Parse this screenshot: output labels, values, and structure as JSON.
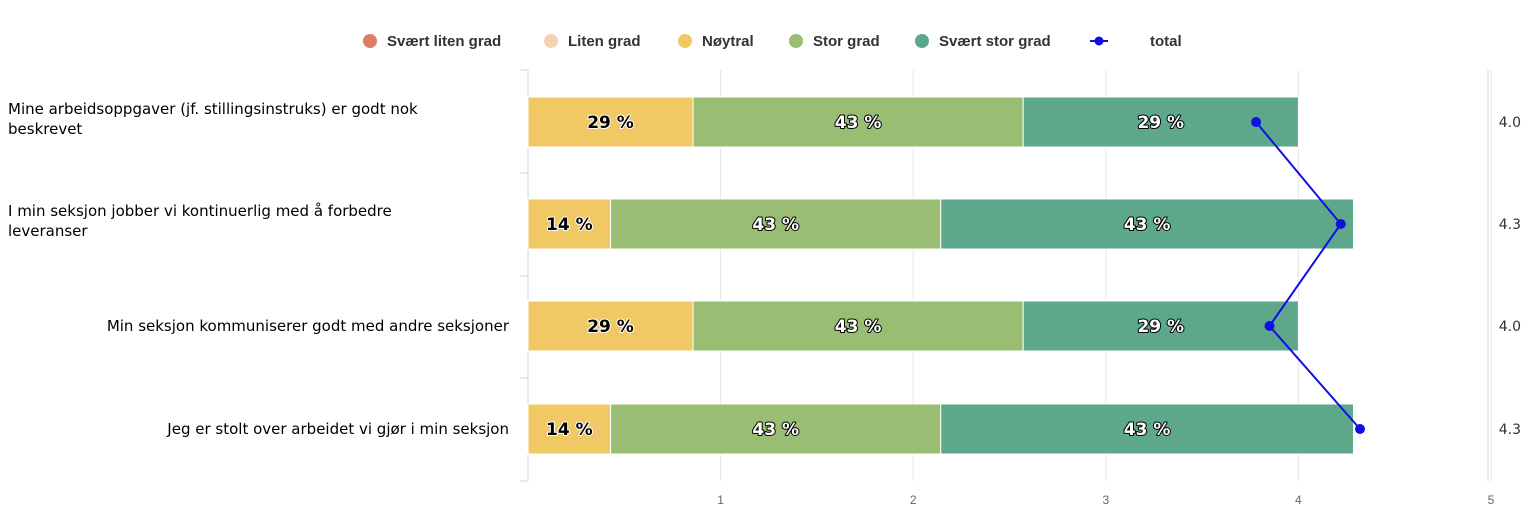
{
  "chart_data": {
    "type": "bar",
    "orientation": "horizontal",
    "stacked": true,
    "categories": [
      "Mine arbeidsoppgaver (jf. stillingsinstruks) er godt nok beskrevet",
      "I min seksjon jobber vi kontinuerlig med å forbedre leveranser",
      "Min seksjon kommuniserer godt med andre seksjoner",
      "Jeg er stolt over arbeidet vi gjør i min seksjon"
    ],
    "series": [
      {
        "name": "Svært liten grad",
        "color": "#e07b6a",
        "values": [
          0,
          0,
          0,
          0
        ],
        "labels": [
          "",
          "",
          "",
          ""
        ]
      },
      {
        "name": "Liten grad",
        "color": "#f6d2b3",
        "values": [
          0,
          0,
          0,
          0
        ],
        "labels": [
          "",
          "",
          "",
          ""
        ]
      },
      {
        "name": "Nøytral",
        "color": "#f0c965",
        "values": [
          0.857,
          0.429,
          0.857,
          0.429
        ],
        "labels": [
          "29 %",
          "14 %",
          "29 %",
          "14 %"
        ]
      },
      {
        "name": "Stor grad",
        "color": "#9abd74",
        "values": [
          1.714,
          1.714,
          1.714,
          1.714
        ],
        "labels": [
          "43 %",
          "43 %",
          "43 %",
          "43 %"
        ]
      },
      {
        "name": "Svært stor grad",
        "color": "#5da78a",
        "values": [
          1.429,
          2.143,
          1.429,
          2.143
        ],
        "labels": [
          "29 %",
          "43 %",
          "29 %",
          "43 %"
        ]
      }
    ],
    "line": {
      "name": "total",
      "color": "#1010e6",
      "values": [
        3.78,
        4.22,
        3.85,
        4.32
      ]
    },
    "right_labels": [
      "4.0",
      "4.3",
      "4.0",
      "4.3"
    ],
    "x_ticks": [
      "1",
      "2",
      "3",
      "4",
      "5"
    ],
    "xlim": [
      0,
      5
    ],
    "grid": true,
    "legend_position": "top"
  }
}
